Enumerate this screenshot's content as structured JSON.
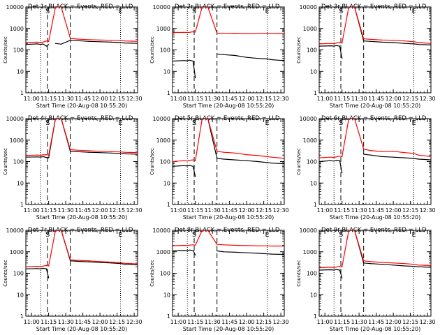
{
  "figure": {
    "ylabel": "Counts/sec",
    "xlabel": "Start Time (20-Aug-08 10:55:20)",
    "legend": "BLACK = Events, RED = LLD",
    "x_ticks": [
      "11:00",
      "11:15",
      "11:30",
      "11:45",
      "12:00",
      "12:15",
      "12:30"
    ],
    "y_ticks": [
      "1",
      "10",
      "100",
      "1000",
      "10000"
    ]
  },
  "chart_data": [
    {
      "type": "line",
      "title": "Det 1r",
      "xlim": [
        -5,
        93
      ],
      "ylim": [
        1,
        10000
      ],
      "yscale": "log",
      "x": [
        -5,
        5,
        8,
        10,
        13,
        15,
        21,
        26,
        34,
        40,
        50,
        60,
        70,
        78,
        82,
        88,
        93
      ],
      "series": [
        {
          "name": "BLACK",
          "color": "#000000",
          "values": [
            180,
            190,
            180,
            190,
            150,
            180,
            200,
            185,
            280,
            270,
            250,
            240,
            230,
            220,
            210,
            205,
            200
          ],
          "segments": [
            [
              0,
              5
            ],
            [
              6,
              16
            ]
          ]
        },
        {
          "name": "RED",
          "color": "#ff0000",
          "values": [
            220,
            230,
            220,
            230,
            260,
            250,
            10000,
            10000,
            350,
            320,
            300,
            290,
            280,
            270,
            260,
            255,
            250
          ],
          "segments": [
            [
              0,
              16
            ]
          ]
        }
      ],
      "markers": [
        {
          "x": 8,
          "style": "dotted",
          "label": ""
        },
        {
          "x": 14,
          "style": "dashed",
          "label": "S"
        },
        {
          "x": 34,
          "style": "dashed",
          "label": ""
        },
        {
          "x": 78,
          "style": "dotted",
          "label": "E"
        }
      ]
    },
    {
      "type": "line",
      "title": "Det 2r",
      "xlim": [
        -5,
        93
      ],
      "ylim": [
        1,
        10000
      ],
      "yscale": "log",
      "x": [
        -5,
        5,
        8,
        10,
        13,
        15,
        21,
        26,
        34,
        40,
        50,
        60,
        70,
        78,
        82,
        88,
        93
      ],
      "series": [
        {
          "name": "BLACK",
          "color": "#000000",
          "values": [
            30,
            32,
            31,
            33,
            30,
            5,
            32,
            30,
            65,
            60,
            55,
            45,
            40,
            38,
            35,
            33,
            32
          ],
          "segments": [
            [
              0,
              5
            ],
            [
              8,
              16
            ]
          ]
        },
        {
          "name": "RED",
          "color": "#ff0000",
          "values": [
            650,
            660,
            650,
            660,
            700,
            680,
            10000,
            10000,
            600,
            590,
            600,
            580,
            590,
            600,
            590,
            580,
            600
          ],
          "segments": [
            [
              0,
              16
            ]
          ]
        }
      ],
      "markers": [
        {
          "x": 8,
          "style": "dotted",
          "label": ""
        },
        {
          "x": 14,
          "style": "dashed",
          "label": "S"
        },
        {
          "x": 34,
          "style": "dashed",
          "label": ""
        },
        {
          "x": 78,
          "style": "dotted",
          "label": "E"
        }
      ]
    },
    {
      "type": "line",
      "title": "Det 3r",
      "xlim": [
        -5,
        93
      ],
      "ylim": [
        1,
        10000
      ],
      "yscale": "log",
      "x": [
        -5,
        5,
        8,
        10,
        13,
        15,
        21,
        26,
        34,
        40,
        50,
        60,
        70,
        78,
        82,
        88,
        93
      ],
      "series": [
        {
          "name": "BLACK",
          "color": "#000000",
          "values": [
            150,
            155,
            150,
            160,
            150,
            40,
            10000,
            10000,
            260,
            250,
            230,
            220,
            200,
            190,
            180,
            175,
            170
          ],
          "segments": [
            [
              0,
              5
            ],
            [
              6,
              16
            ]
          ]
        },
        {
          "name": "RED",
          "color": "#ff0000",
          "values": [
            190,
            200,
            195,
            210,
            220,
            210,
            10000,
            10000,
            330,
            310,
            290,
            280,
            260,
            240,
            220,
            210,
            200
          ],
          "segments": [
            [
              0,
              16
            ]
          ]
        }
      ],
      "markers": [
        {
          "x": 8,
          "style": "dotted",
          "label": ""
        },
        {
          "x": 14,
          "style": "dashed",
          "label": "S"
        },
        {
          "x": 34,
          "style": "dashed",
          "label": ""
        },
        {
          "x": 78,
          "style": "dotted",
          "label": "E"
        }
      ]
    },
    {
      "type": "line",
      "title": "Det 4r",
      "xlim": [
        -5,
        93
      ],
      "ylim": [
        1,
        10000
      ],
      "yscale": "log",
      "x": [
        -5,
        5,
        8,
        10,
        13,
        15,
        21,
        26,
        34,
        40,
        50,
        60,
        70,
        78,
        82,
        88,
        93
      ],
      "series": [
        {
          "name": "BLACK",
          "color": "#000000",
          "values": [
            160,
            165,
            160,
            170,
            155,
            150,
            10000,
            10000,
            300,
            290,
            270,
            260,
            250,
            240,
            230,
            225,
            220
          ],
          "segments": [
            [
              0,
              16
            ]
          ]
        },
        {
          "name": "RED",
          "color": "#ff0000",
          "values": [
            190,
            200,
            195,
            205,
            210,
            200,
            10000,
            10000,
            360,
            340,
            320,
            300,
            290,
            280,
            270,
            265,
            260
          ],
          "segments": [
            [
              0,
              16
            ]
          ]
        }
      ],
      "markers": [
        {
          "x": 8,
          "style": "dotted",
          "label": ""
        },
        {
          "x": 14,
          "style": "dashed",
          "label": "S"
        },
        {
          "x": 34,
          "style": "dashed",
          "label": ""
        },
        {
          "x": 78,
          "style": "dotted",
          "label": "E"
        }
      ]
    },
    {
      "type": "line",
      "title": "Det 5r",
      "xlim": [
        -5,
        93
      ],
      "ylim": [
        1,
        10000
      ],
      "yscale": "log",
      "x": [
        -5,
        5,
        8,
        10,
        13,
        15,
        21,
        26,
        34,
        40,
        50,
        60,
        70,
        78,
        82,
        88,
        93
      ],
      "series": [
        {
          "name": "BLACK",
          "color": "#000000",
          "values": [
            60,
            65,
            62,
            66,
            60,
            20,
            10000,
            10000,
            140,
            130,
            120,
            110,
            100,
            90,
            85,
            82,
            80
          ],
          "segments": [
            [
              0,
              5
            ],
            [
              6,
              16
            ]
          ]
        },
        {
          "name": "RED",
          "color": "#ff0000",
          "values": [
            100,
            110,
            105,
            115,
            120,
            110,
            10000,
            10000,
            300,
            270,
            250,
            210,
            190,
            170,
            160,
            150,
            140
          ],
          "segments": [
            [
              0,
              16
            ]
          ]
        }
      ],
      "markers": [
        {
          "x": 8,
          "style": "dotted",
          "label": ""
        },
        {
          "x": 14,
          "style": "dashed",
          "label": "S"
        },
        {
          "x": 34,
          "style": "dashed",
          "label": ""
        },
        {
          "x": 78,
          "style": "dotted",
          "label": "E"
        }
      ]
    },
    {
      "type": "line",
      "title": "Det 6r",
      "xlim": [
        -5,
        93
      ],
      "ylim": [
        1,
        10000
      ],
      "yscale": "log",
      "x": [
        -5,
        5,
        8,
        10,
        13,
        15,
        21,
        26,
        34,
        40,
        50,
        60,
        70,
        78,
        82,
        88,
        93
      ],
      "series": [
        {
          "name": "BLACK",
          "color": "#000000",
          "values": [
            100,
            110,
            105,
            115,
            110,
            30,
            110,
            100,
            220,
            200,
            170,
            160,
            150,
            140,
            130,
            125,
            120
          ],
          "segments": [
            [
              0,
              5
            ],
            [
              8,
              16
            ]
          ]
        },
        {
          "name": "RED",
          "color": "#ff0000",
          "values": [
            150,
            160,
            155,
            165,
            180,
            170,
            10000,
            10000,
            380,
            330,
            290,
            300,
            260,
            240,
            200,
            185,
            170
          ],
          "segments": [
            [
              0,
              16
            ]
          ]
        }
      ],
      "markers": [
        {
          "x": 8,
          "style": "dotted",
          "label": ""
        },
        {
          "x": 14,
          "style": "dashed",
          "label": "S"
        },
        {
          "x": 34,
          "style": "dashed",
          "label": ""
        },
        {
          "x": 78,
          "style": "dotted",
          "label": "E"
        }
      ]
    },
    {
      "type": "line",
      "title": "Det 7r",
      "xlim": [
        -5,
        93
      ],
      "ylim": [
        1,
        10000
      ],
      "yscale": "log",
      "x": [
        -5,
        5,
        8,
        10,
        13,
        15,
        21,
        26,
        34,
        40,
        50,
        60,
        70,
        78,
        82,
        88,
        93
      ],
      "series": [
        {
          "name": "BLACK",
          "color": "#000000",
          "values": [
            160,
            165,
            160,
            170,
            160,
            60,
            10000,
            10000,
            380,
            360,
            340,
            320,
            300,
            280,
            260,
            250,
            245
          ],
          "segments": [
            [
              0,
              5
            ],
            [
              6,
              16
            ]
          ]
        },
        {
          "name": "RED",
          "color": "#ff0000",
          "values": [
            200,
            210,
            205,
            215,
            230,
            220,
            10000,
            10000,
            420,
            400,
            380,
            350,
            330,
            310,
            290,
            280,
            270
          ],
          "segments": [
            [
              0,
              16
            ]
          ]
        }
      ],
      "markers": [
        {
          "x": 8,
          "style": "dotted",
          "label": ""
        },
        {
          "x": 14,
          "style": "dashed",
          "label": "S"
        },
        {
          "x": 34,
          "style": "dashed",
          "label": ""
        },
        {
          "x": 78,
          "style": "dotted",
          "label": "E"
        }
      ]
    },
    {
      "type": "line",
      "title": "Det 8r",
      "xlim": [
        -5,
        93
      ],
      "ylim": [
        1,
        10000
      ],
      "yscale": "log",
      "x": [
        -5,
        5,
        8,
        10,
        13,
        15,
        21,
        26,
        34,
        40,
        50,
        60,
        70,
        78,
        82,
        88,
        93
      ],
      "series": [
        {
          "name": "BLACK",
          "color": "#000000",
          "values": [
            1100,
            1150,
            1100,
            1200,
            1150,
            700,
            1400,
            1300,
            1100,
            1000,
            950,
            900,
            850,
            800,
            780,
            760,
            750
          ],
          "segments": [
            [
              0,
              5
            ],
            [
              8,
              16
            ]
          ]
        },
        {
          "name": "RED",
          "color": "#ff0000",
          "values": [
            1900,
            2000,
            1950,
            2050,
            2100,
            2000,
            10000,
            10000,
            2200,
            2100,
            2000,
            1950,
            1900,
            1880,
            1860,
            1850,
            1850
          ],
          "segments": [
            [
              0,
              16
            ]
          ]
        }
      ],
      "markers": [
        {
          "x": 8,
          "style": "dotted",
          "label": ""
        },
        {
          "x": 14,
          "style": "dashed",
          "label": "S"
        },
        {
          "x": 34,
          "style": "dashed",
          "label": ""
        },
        {
          "x": 78,
          "style": "dotted",
          "label": "E"
        }
      ]
    },
    {
      "type": "line",
      "title": "Det 9r",
      "xlim": [
        -5,
        93
      ],
      "ylim": [
        1,
        10000
      ],
      "yscale": "log",
      "x": [
        -5,
        5,
        8,
        10,
        13,
        15,
        21,
        26,
        34,
        40,
        50,
        60,
        70,
        78,
        82,
        88,
        93
      ],
      "series": [
        {
          "name": "BLACK",
          "color": "#000000",
          "values": [
            140,
            145,
            140,
            150,
            140,
            60,
            10000,
            10000,
            300,
            280,
            260,
            240,
            220,
            210,
            200,
            195,
            190
          ],
          "segments": [
            [
              0,
              5
            ],
            [
              6,
              16
            ]
          ]
        },
        {
          "name": "RED",
          "color": "#ff0000",
          "values": [
            180,
            190,
            185,
            195,
            210,
            200,
            10000,
            10000,
            380,
            350,
            320,
            300,
            280,
            260,
            240,
            235,
            230
          ],
          "segments": [
            [
              0,
              16
            ]
          ]
        }
      ],
      "markers": [
        {
          "x": 8,
          "style": "dotted",
          "label": ""
        },
        {
          "x": 14,
          "style": "dashed",
          "label": "S"
        },
        {
          "x": 34,
          "style": "dashed",
          "label": ""
        },
        {
          "x": 78,
          "style": "dotted",
          "label": "E"
        }
      ]
    }
  ]
}
